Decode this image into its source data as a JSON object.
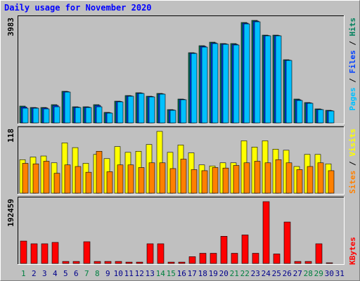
{
  "chart_data": [
    {
      "type": "bar",
      "title": "Daily usage for November 2020",
      "ylim": [
        0,
        3983
      ],
      "yticks": [
        3983
      ],
      "series": [
        {
          "name": "Hits",
          "color": "#00805c",
          "values": [
            655,
            600,
            600,
            710,
            1228,
            628,
            628,
            710,
            410,
            846,
            1064,
            1173,
            1037,
            1146,
            518,
            928,
            2728,
            3000,
            3137,
            3083,
            3083,
            3901,
            3983,
            3410,
            3410,
            2455,
            928,
            792,
            546,
            491,
            0
          ]
        },
        {
          "name": "Files",
          "color": "#0040ff",
          "values": [
            620,
            590,
            580,
            680,
            1215,
            615,
            615,
            680,
            395,
            835,
            1050,
            1160,
            1025,
            1130,
            505,
            915,
            2715,
            2975,
            3110,
            3070,
            3055,
            3875,
            3955,
            3395,
            3395,
            2440,
            900,
            780,
            530,
            478,
            0
          ]
        },
        {
          "name": "Pages",
          "color": "#00c0ff",
          "values": [
            573,
            573,
            546,
            628,
            1200,
            600,
            600,
            628,
            382,
            819,
            1037,
            1146,
            1010,
            1119,
            491,
            901,
            2700,
            2946,
            3083,
            3055,
            3028,
            3846,
            3928,
            3383,
            3383,
            2428,
            873,
            764,
            518,
            464,
            0
          ]
        }
      ]
    },
    {
      "type": "bar",
      "ylim": [
        0,
        118
      ],
      "yticks": [
        118
      ],
      "series": [
        {
          "name": "Visits",
          "color": "#ffff00",
          "values": [
            64,
            69,
            71,
            58,
            96,
            87,
            57,
            74,
            66,
            89,
            78,
            80,
            93,
            118,
            78,
            92,
            77,
            54,
            52,
            58,
            58,
            100,
            88,
            100,
            84,
            82,
            51,
            74,
            74,
            56,
            0
          ]
        },
        {
          "name": "Sites",
          "color": "#ff8000",
          "values": [
            57,
            56,
            61,
            38,
            54,
            51,
            40,
            80,
            41,
            54,
            54,
            49,
            58,
            58,
            47,
            65,
            45,
            43,
            49,
            48,
            53,
            58,
            61,
            58,
            64,
            58,
            45,
            51,
            58,
            43,
            0
          ]
        }
      ]
    },
    {
      "type": "bar",
      "ylim": [
        0,
        192459
      ],
      "yticks": [
        192459
      ],
      "categories": [
        "1",
        "2",
        "3",
        "4",
        "5",
        "6",
        "7",
        "8",
        "9",
        "10",
        "11",
        "12",
        "13",
        "14",
        "15",
        "16",
        "17",
        "18",
        "19",
        "20",
        "21",
        "22",
        "23",
        "24",
        "25",
        "26",
        "27",
        "28",
        "29",
        "30",
        "31"
      ],
      "category_colors": [
        "#008040",
        "#00008b",
        "#00008b",
        "#00008b",
        "#00008b",
        "#00008b",
        "#008040",
        "#008040",
        "#00008b",
        "#00008b",
        "#00008b",
        "#00008b",
        "#00008b",
        "#008040",
        "#008040",
        "#00008b",
        "#00008b",
        "#00008b",
        "#00008b",
        "#00008b",
        "#008040",
        "#008040",
        "#00008b",
        "#00008b",
        "#00008b",
        "#00008b",
        "#00008b",
        "#008040",
        "#008040",
        "#00008b",
        "#00008b"
      ],
      "series": [
        {
          "name": "KBytes",
          "color": "#ff0000",
          "values": [
            69800,
            61300,
            61300,
            65600,
            6300,
            6300,
            67700,
            6300,
            6300,
            6300,
            4200,
            4200,
            61300,
            61300,
            4200,
            4200,
            21100,
            31700,
            31700,
            84600,
            31700,
            88800,
            31700,
            192459,
            29600,
            129000,
            6300,
            6300,
            61300,
            2100,
            0
          ]
        }
      ]
    }
  ]
}
